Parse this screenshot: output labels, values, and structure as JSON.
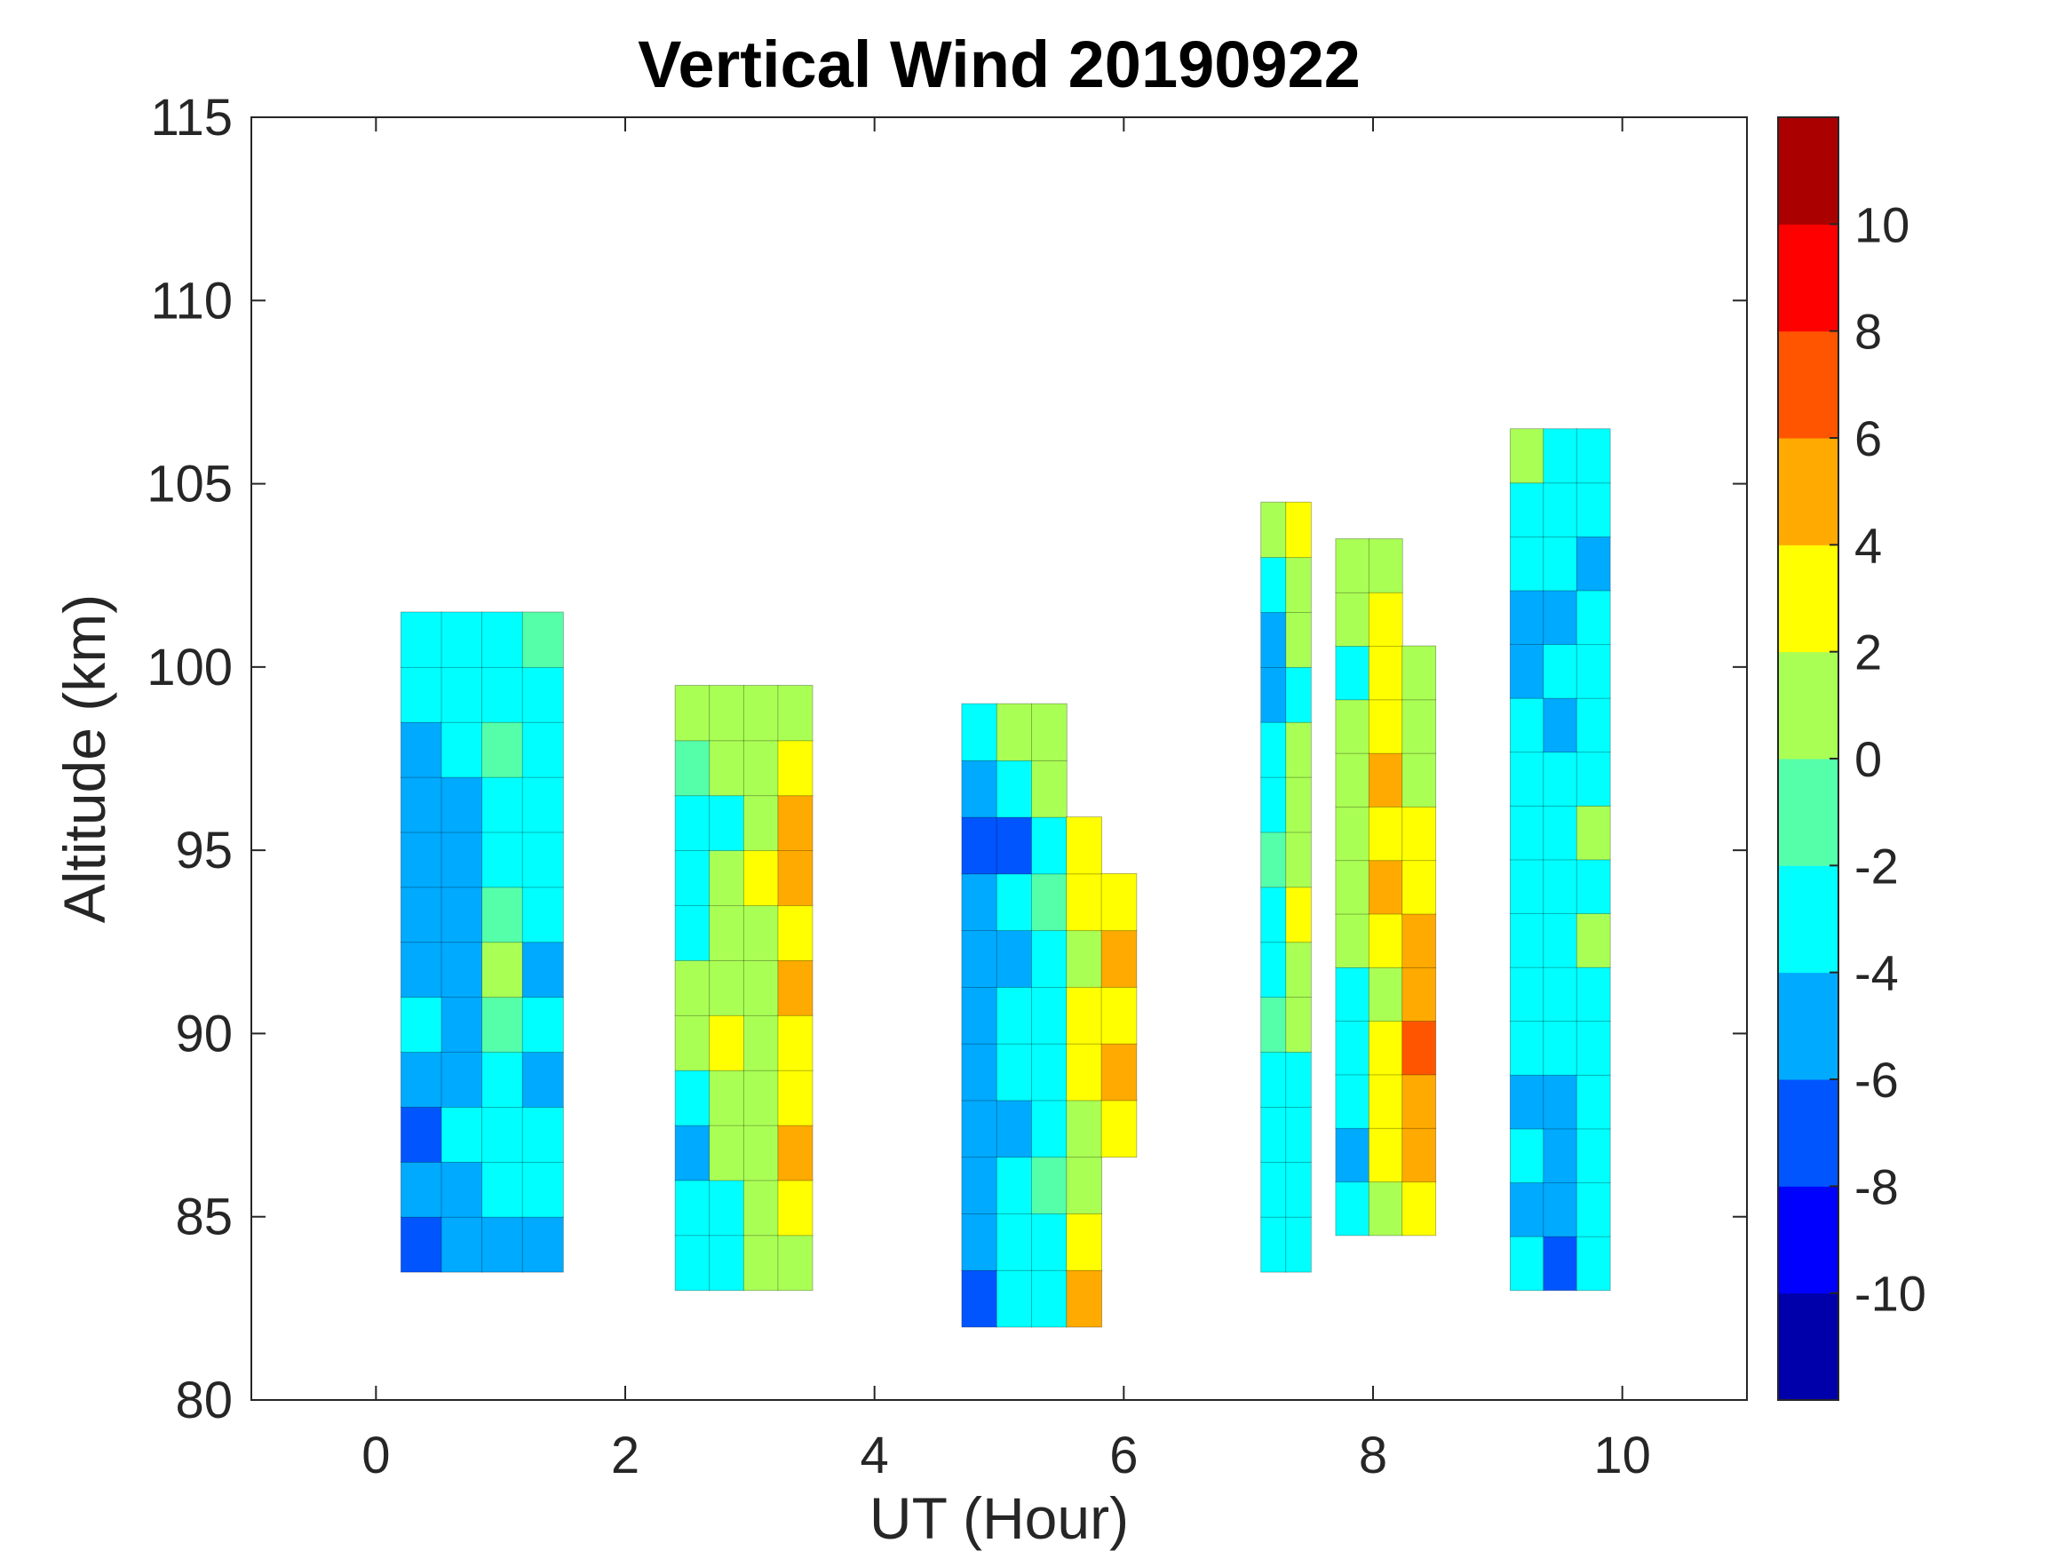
{
  "chart_data": {
    "type": "heatmap",
    "title": "Vertical Wind 20190922",
    "xlabel": "UT (Hour)",
    "ylabel": "Altitude (km)",
    "xlim": [
      -1,
      11
    ],
    "ylim": [
      80,
      115
    ],
    "xticks": [
      "0",
      "2",
      "4",
      "6",
      "8",
      "10"
    ],
    "xtick_values": [
      0,
      2,
      4,
      6,
      8,
      10
    ],
    "yticks": [
      "80",
      "85",
      "90",
      "95",
      "100",
      "105",
      "110",
      "115"
    ],
    "ytick_values": [
      80,
      85,
      90,
      95,
      100,
      105,
      110,
      115
    ],
    "colorbar": {
      "range": [
        -12,
        12
      ],
      "levels": [
        -12,
        -10,
        -8,
        -6,
        -4,
        -2,
        0,
        2,
        4,
        6,
        8,
        10,
        12
      ],
      "colors": [
        "#0000AA",
        "#0000FF",
        "#0055FF",
        "#00AAFF",
        "#00FFFF",
        "#55FFAA",
        "#AAFF55",
        "#FFFF00",
        "#FFAA00",
        "#FF5500",
        "#FF0000",
        "#AA0000"
      ],
      "tick_labels": [
        "-10",
        "-8",
        "-6",
        "-4",
        "-2",
        "0",
        "2",
        "4",
        "6",
        "8",
        "10"
      ],
      "tick_values": [
        -10,
        -8,
        -6,
        -4,
        -2,
        0,
        2,
        4,
        6,
        8,
        10
      ]
    },
    "swaths": [
      {
        "ut": [
          0.2,
          1.5
        ],
        "alt": [
          83.5,
          101.5
        ],
        "columns": [
          [
            -7,
            -6,
            -7,
            -5,
            -4,
            -5,
            -5,
            -5,
            -6,
            -5,
            -4,
            -4
          ],
          [
            -6,
            -5,
            -4,
            -5,
            -5,
            -5,
            -6,
            -5,
            -5,
            -4,
            -3,
            -3
          ],
          [
            -5,
            -4,
            -3,
            -3,
            -1,
            0,
            -1,
            -3,
            -3,
            -1,
            -3,
            -3
          ],
          [
            -6,
            -3,
            -3,
            -5,
            -3,
            -5,
            -3,
            -3,
            -3,
            -3,
            -3,
            -1
          ]
        ]
      },
      {
        "ut": [
          2.4,
          3.5
        ],
        "alt": [
          83,
          99.5
        ],
        "columns": [
          [
            -3,
            -3,
            -5,
            -3,
            1,
            1,
            -3,
            -3,
            -3,
            -1,
            1
          ],
          [
            -3,
            -3,
            1,
            1,
            3,
            1,
            1,
            1,
            -3,
            1,
            1
          ],
          [
            1,
            1,
            1,
            1,
            1,
            1,
            1,
            3,
            1,
            1,
            1
          ],
          [
            1,
            3,
            5,
            3,
            3,
            5,
            3,
            5,
            5,
            3,
            1
          ]
        ]
      },
      {
        "ut": [
          4.7,
          6.1
        ],
        "alt": [
          82,
          99
        ],
        "columns": [
          [
            -7,
            -5,
            -5,
            -5,
            -5,
            -5,
            -5,
            -5,
            -7,
            -5,
            -3
          ],
          [
            -3,
            -3,
            -3,
            -5,
            -3,
            -3,
            -5,
            -3,
            -7,
            -3,
            1
          ],
          [
            -3,
            -3,
            -1,
            -3,
            -3,
            -3,
            -3,
            -1,
            -3,
            1,
            1
          ],
          [
            5,
            3,
            1,
            1,
            3,
            3,
            1,
            3,
            3,
            null,
            null
          ],
          [
            null,
            null,
            null,
            3,
            5,
            3,
            5,
            3,
            null,
            null,
            null
          ]
        ]
      },
      {
        "ut": [
          7.1,
          7.5
        ],
        "alt": [
          83.5,
          104.5
        ],
        "columns": [
          [
            -3,
            -3,
            -3,
            -3,
            -1,
            -3,
            -3,
            -1,
            -3,
            -3,
            -5,
            -5,
            -3,
            1
          ],
          [
            -3,
            -3,
            -3,
            -3,
            1,
            1,
            3,
            1,
            1,
            1,
            -3,
            1,
            1,
            3
          ]
        ]
      },
      {
        "ut": [
          7.7,
          8.5
        ],
        "alt": [
          84.5,
          103.5
        ],
        "columns": [
          [
            -3,
            -5,
            -3,
            -3,
            -3,
            1,
            1,
            1,
            1,
            1,
            -3,
            1,
            1
          ],
          [
            1,
            3,
            3,
            3,
            1,
            3,
            5,
            3,
            5,
            3,
            3,
            3,
            1
          ],
          [
            3,
            5,
            5,
            7,
            5,
            5,
            3,
            3,
            1,
            1,
            1,
            null,
            null
          ]
        ]
      },
      {
        "ut": [
          9.1,
          9.9
        ],
        "alt": [
          83,
          106.5
        ],
        "columns": [
          [
            -3,
            -5,
            -3,
            -5,
            -3,
            -3,
            -3,
            -3,
            -3,
            -3,
            -3,
            -5,
            -5,
            -3,
            -3,
            1
          ],
          [
            -7,
            -5,
            -5,
            -5,
            -3,
            -3,
            -3,
            -3,
            -3,
            -3,
            -5,
            -3,
            -5,
            -3,
            -3,
            -3
          ],
          [
            -3,
            -3,
            -3,
            -3,
            -3,
            -3,
            1,
            -3,
            1,
            -3,
            -3,
            -3,
            -3,
            -5,
            -3,
            -3
          ]
        ]
      }
    ]
  }
}
